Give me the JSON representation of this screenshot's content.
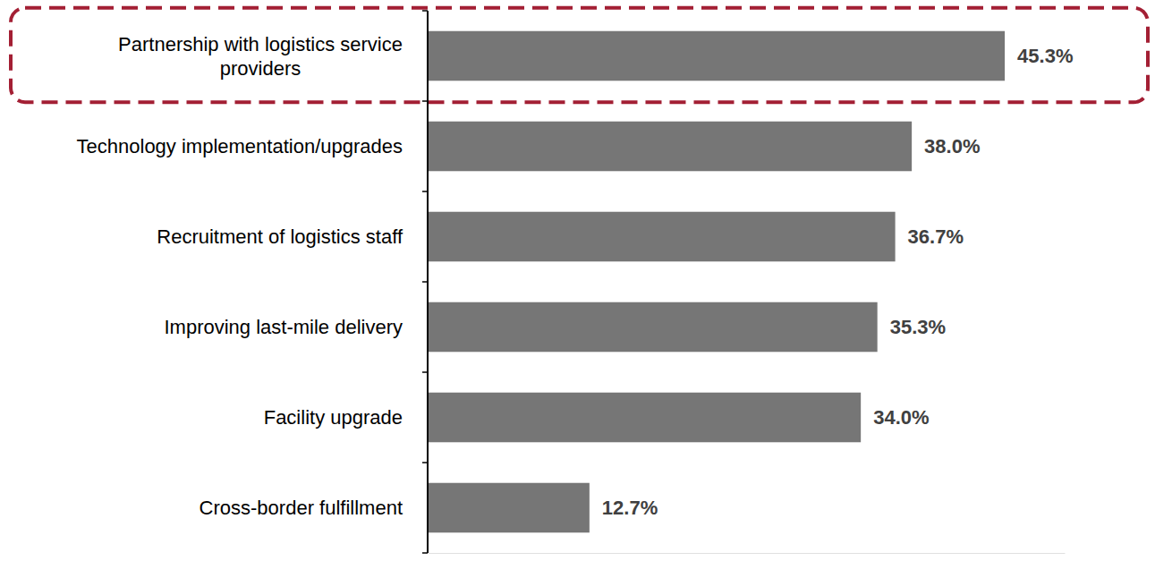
{
  "chart_data": {
    "type": "bar",
    "orientation": "horizontal",
    "categories": [
      "Partnership with logistics service providers",
      "Technology implementation/upgrades",
      "Recruitment of logistics staff",
      "Improving last-mile delivery",
      "Facility upgrade",
      "Cross-border fulfillment"
    ],
    "values": [
      45.3,
      38.0,
      36.7,
      35.3,
      34.0,
      12.7
    ],
    "value_labels": [
      "45.3%",
      "38.0%",
      "36.7%",
      "35.3%",
      "34.0%",
      "12.7%"
    ],
    "color": "#767676",
    "xlim": [
      0,
      50
    ],
    "data_labels": true,
    "tick_labels": "y",
    "grid": false
  }
}
